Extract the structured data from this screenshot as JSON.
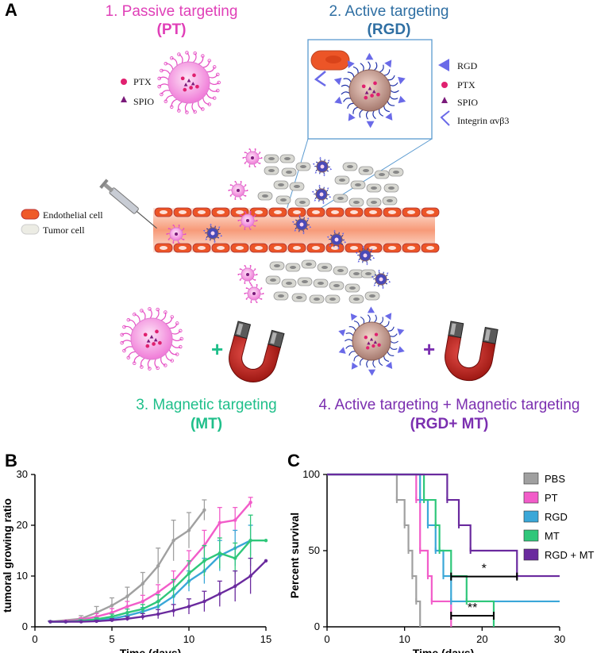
{
  "panelA": {
    "letter": "A",
    "pt_title": "1. Passive targeting",
    "pt_sub": "(PT)",
    "rgd_title": "2. Active targeting",
    "rgd_sub": "(RGD)",
    "mt_title": "3. Magnetic targeting",
    "mt_sub": "(MT)",
    "rgdmt_title": "4. Active targeting + Magnetic targeting",
    "rgdmt_sub": "(RGD+ MT)",
    "legend_left": [
      "PTX",
      "SPIO"
    ],
    "legend_right": [
      "RGD",
      "PTX",
      "SPIO",
      "Integrin αvβ3"
    ],
    "cell_legend": [
      "Endothelial cell",
      "Tumor cell"
    ],
    "plus": "+",
    "colors": {
      "pt": "#e040b8",
      "rgd": "#2f6fa3",
      "mt": "#1fbf8a",
      "rgdmt": "#7b2fb0"
    }
  },
  "panelB": {
    "letter": "B",
    "chart_data": {
      "type": "line",
      "xlabel": "Time (days)",
      "ylabel": "tumoral growing ratio",
      "xlim": [
        0,
        15
      ],
      "ylim": [
        0,
        30
      ],
      "xticks": [
        0,
        5,
        10,
        15
      ],
      "yticks": [
        0,
        10,
        20,
        30
      ],
      "series": [
        {
          "name": "PBS",
          "color": "#a0a0a0",
          "x": [
            1,
            3,
            4,
            5,
            6,
            7,
            8,
            9,
            10,
            11
          ],
          "y": [
            1,
            1.6,
            2.8,
            4.2,
            6,
            8.5,
            12,
            17,
            19,
            23
          ],
          "err": [
            0.2,
            0.6,
            1.2,
            1.5,
            1.8,
            2.2,
            3.5,
            4,
            3.5,
            2
          ]
        },
        {
          "name": "PT",
          "color": "#f25cc9",
          "x": [
            1,
            2,
            3,
            4,
            5,
            6,
            7,
            8,
            9,
            10,
            11,
            12,
            13,
            14
          ],
          "y": [
            1,
            1.1,
            1.4,
            2,
            2.8,
            4,
            5,
            6.8,
            9,
            12.5,
            16,
            20.5,
            21,
            24.5
          ],
          "err": [
            0.1,
            0.2,
            0.4,
            0.6,
            0.8,
            1,
            1.2,
            1.5,
            2,
            2.5,
            3,
            3,
            2.5,
            1
          ]
        },
        {
          "name": "RGD",
          "color": "#3aa7d8",
          "x": [
            1,
            2,
            3,
            4,
            5,
            6,
            7,
            8,
            9,
            10,
            11,
            12,
            13,
            14
          ],
          "y": [
            1,
            1,
            1.1,
            1.3,
            1.6,
            2.2,
            3,
            4,
            6,
            9,
            11,
            14,
            15.5,
            17
          ],
          "err": [
            0.1,
            0.1,
            0.2,
            0.3,
            0.4,
            0.6,
            0.8,
            1,
            1.5,
            2,
            2.5,
            3,
            3.5,
            3
          ]
        },
        {
          "name": "MT",
          "color": "#2fc77a",
          "x": [
            1,
            2,
            3,
            4,
            5,
            6,
            7,
            8,
            9,
            10,
            11,
            12,
            13,
            14,
            15
          ],
          "y": [
            1,
            1,
            1.2,
            1.5,
            2,
            2.8,
            3.5,
            5,
            7.5,
            10.5,
            13,
            14.5,
            13.5,
            17,
            17
          ],
          "err": [
            0.1,
            0.1,
            0.2,
            0.3,
            0.5,
            0.7,
            0.9,
            1.3,
            1.8,
            2.5,
            3,
            3,
            3,
            5,
            0
          ]
        },
        {
          "name": "RGD + MT",
          "color": "#6a2a9e",
          "x": [
            1,
            2,
            3,
            4,
            5,
            6,
            7,
            8,
            9,
            10,
            11,
            12,
            13,
            14,
            15
          ],
          "y": [
            1,
            1,
            1,
            1.1,
            1.3,
            1.6,
            2,
            2.5,
            3.2,
            4,
            5,
            6.5,
            8,
            10,
            13
          ],
          "err": [
            0.1,
            0.1,
            0.1,
            0.2,
            0.3,
            0.4,
            0.6,
            0.9,
            1.2,
            1.5,
            2,
            2.5,
            3,
            3.5,
            0
          ]
        }
      ]
    }
  },
  "panelC": {
    "letter": "C",
    "chart_data": {
      "type": "line",
      "xlabel": "Time (days)",
      "ylabel": "Percent survival",
      "xlim": [
        0,
        30
      ],
      "ylim": [
        0,
        100
      ],
      "xticks": [
        0,
        10,
        20,
        30
      ],
      "yticks": [
        0,
        50,
        100
      ],
      "series": [
        {
          "name": "PBS",
          "color": "#a0a0a0",
          "steps": [
            [
              0,
              100
            ],
            [
              9,
              83.3
            ],
            [
              10,
              66.7
            ],
            [
              10.5,
              50
            ],
            [
              11,
              33.3
            ],
            [
              11.5,
              16.7
            ],
            [
              12,
              0
            ]
          ]
        },
        {
          "name": "PT",
          "color": "#f25cc9",
          "steps": [
            [
              0,
              100
            ],
            [
              11.5,
              83.3
            ],
            [
              12,
              50
            ],
            [
              13,
              33.3
            ],
            [
              13.5,
              16.7
            ],
            [
              16,
              0
            ]
          ]
        },
        {
          "name": "RGD",
          "color": "#3aa7d8",
          "steps": [
            [
              0,
              100
            ],
            [
              12,
              83.3
            ],
            [
              13,
              66.7
            ],
            [
              14,
              50
            ],
            [
              15,
              33.3
            ],
            [
              16,
              16.7
            ],
            [
              30,
              16.7
            ]
          ]
        },
        {
          "name": "MT",
          "color": "#2fc77a",
          "steps": [
            [
              0,
              100
            ],
            [
              12.5,
              83.3
            ],
            [
              14,
              66.7
            ],
            [
              14.5,
              50
            ],
            [
              16,
              33.3
            ],
            [
              18,
              16.7
            ],
            [
              21.5,
              0
            ]
          ]
        },
        {
          "name": "RGD + MT",
          "color": "#6a2a9e",
          "steps": [
            [
              0,
              100
            ],
            [
              15.5,
              83.3
            ],
            [
              17,
              66.7
            ],
            [
              18.5,
              50
            ],
            [
              24.5,
              33.3
            ],
            [
              30,
              33.3
            ]
          ]
        }
      ],
      "annotations": [
        {
          "text": "*",
          "x1": 16,
          "x2": 24.5,
          "y": 33
        },
        {
          "text": "**",
          "x1": 16,
          "x2": 21.5,
          "y": 0
        }
      ]
    }
  }
}
